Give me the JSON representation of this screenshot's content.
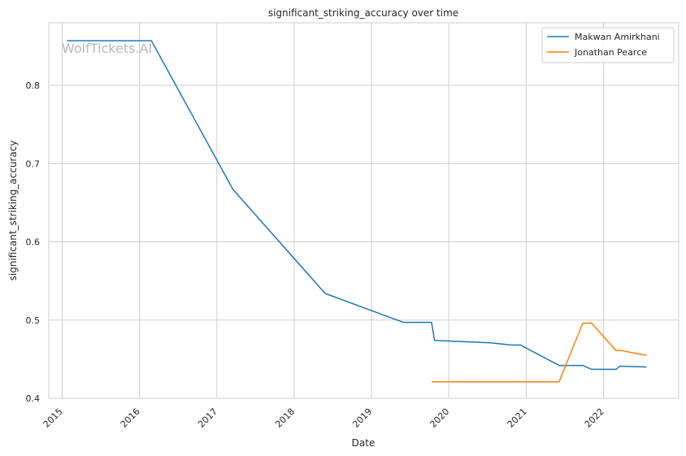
{
  "chart_data": {
    "type": "line",
    "title": "significant_striking_accuracy over time",
    "xlabel": "Date",
    "ylabel": "significant_striking_accuracy",
    "watermark": "WolfTickets.AI",
    "x_type": "date",
    "xlim": [
      "2014-10-30",
      "2022-12-22"
    ],
    "ylim": [
      0.4,
      0.88
    ],
    "x_ticks": [
      "2015",
      "2016",
      "2017",
      "2018",
      "2019",
      "2020",
      "2021",
      "2022"
    ],
    "y_ticks": [
      "0.4",
      "0.5",
      "0.6",
      "0.7",
      "0.8"
    ],
    "grid": true,
    "legend_position": "top-right",
    "series": [
      {
        "name": "Makwan Amirkhani",
        "color": "#1f77b4",
        "points": [
          [
            "2015-01-24",
            0.857
          ],
          [
            "2016-02-27",
            0.857
          ],
          [
            "2017-03-18",
            0.667
          ],
          [
            "2018-05-27",
            0.534
          ],
          [
            "2019-06-01",
            0.497
          ],
          [
            "2019-10-12",
            0.497
          ],
          [
            "2019-10-26",
            0.474
          ],
          [
            "2020-07-16",
            0.471
          ],
          [
            "2020-10-24",
            0.468
          ],
          [
            "2020-12-05",
            0.468
          ],
          [
            "2021-06-05",
            0.442
          ],
          [
            "2021-09-25",
            0.442
          ],
          [
            "2021-11-06",
            0.437
          ],
          [
            "2022-03-01",
            0.437
          ],
          [
            "2022-03-19",
            0.441
          ],
          [
            "2022-07-23",
            0.44
          ]
        ]
      },
      {
        "name": "Jonathan Pearce",
        "color": "#ff7f0e",
        "points": [
          [
            "2019-10-12",
            0.421
          ],
          [
            "2021-06-05",
            0.421
          ],
          [
            "2021-09-25",
            0.496
          ],
          [
            "2021-11-06",
            0.496
          ],
          [
            "2022-03-01",
            0.461
          ],
          [
            "2022-03-26",
            0.461
          ],
          [
            "2022-07-23",
            0.455
          ]
        ]
      }
    ]
  }
}
